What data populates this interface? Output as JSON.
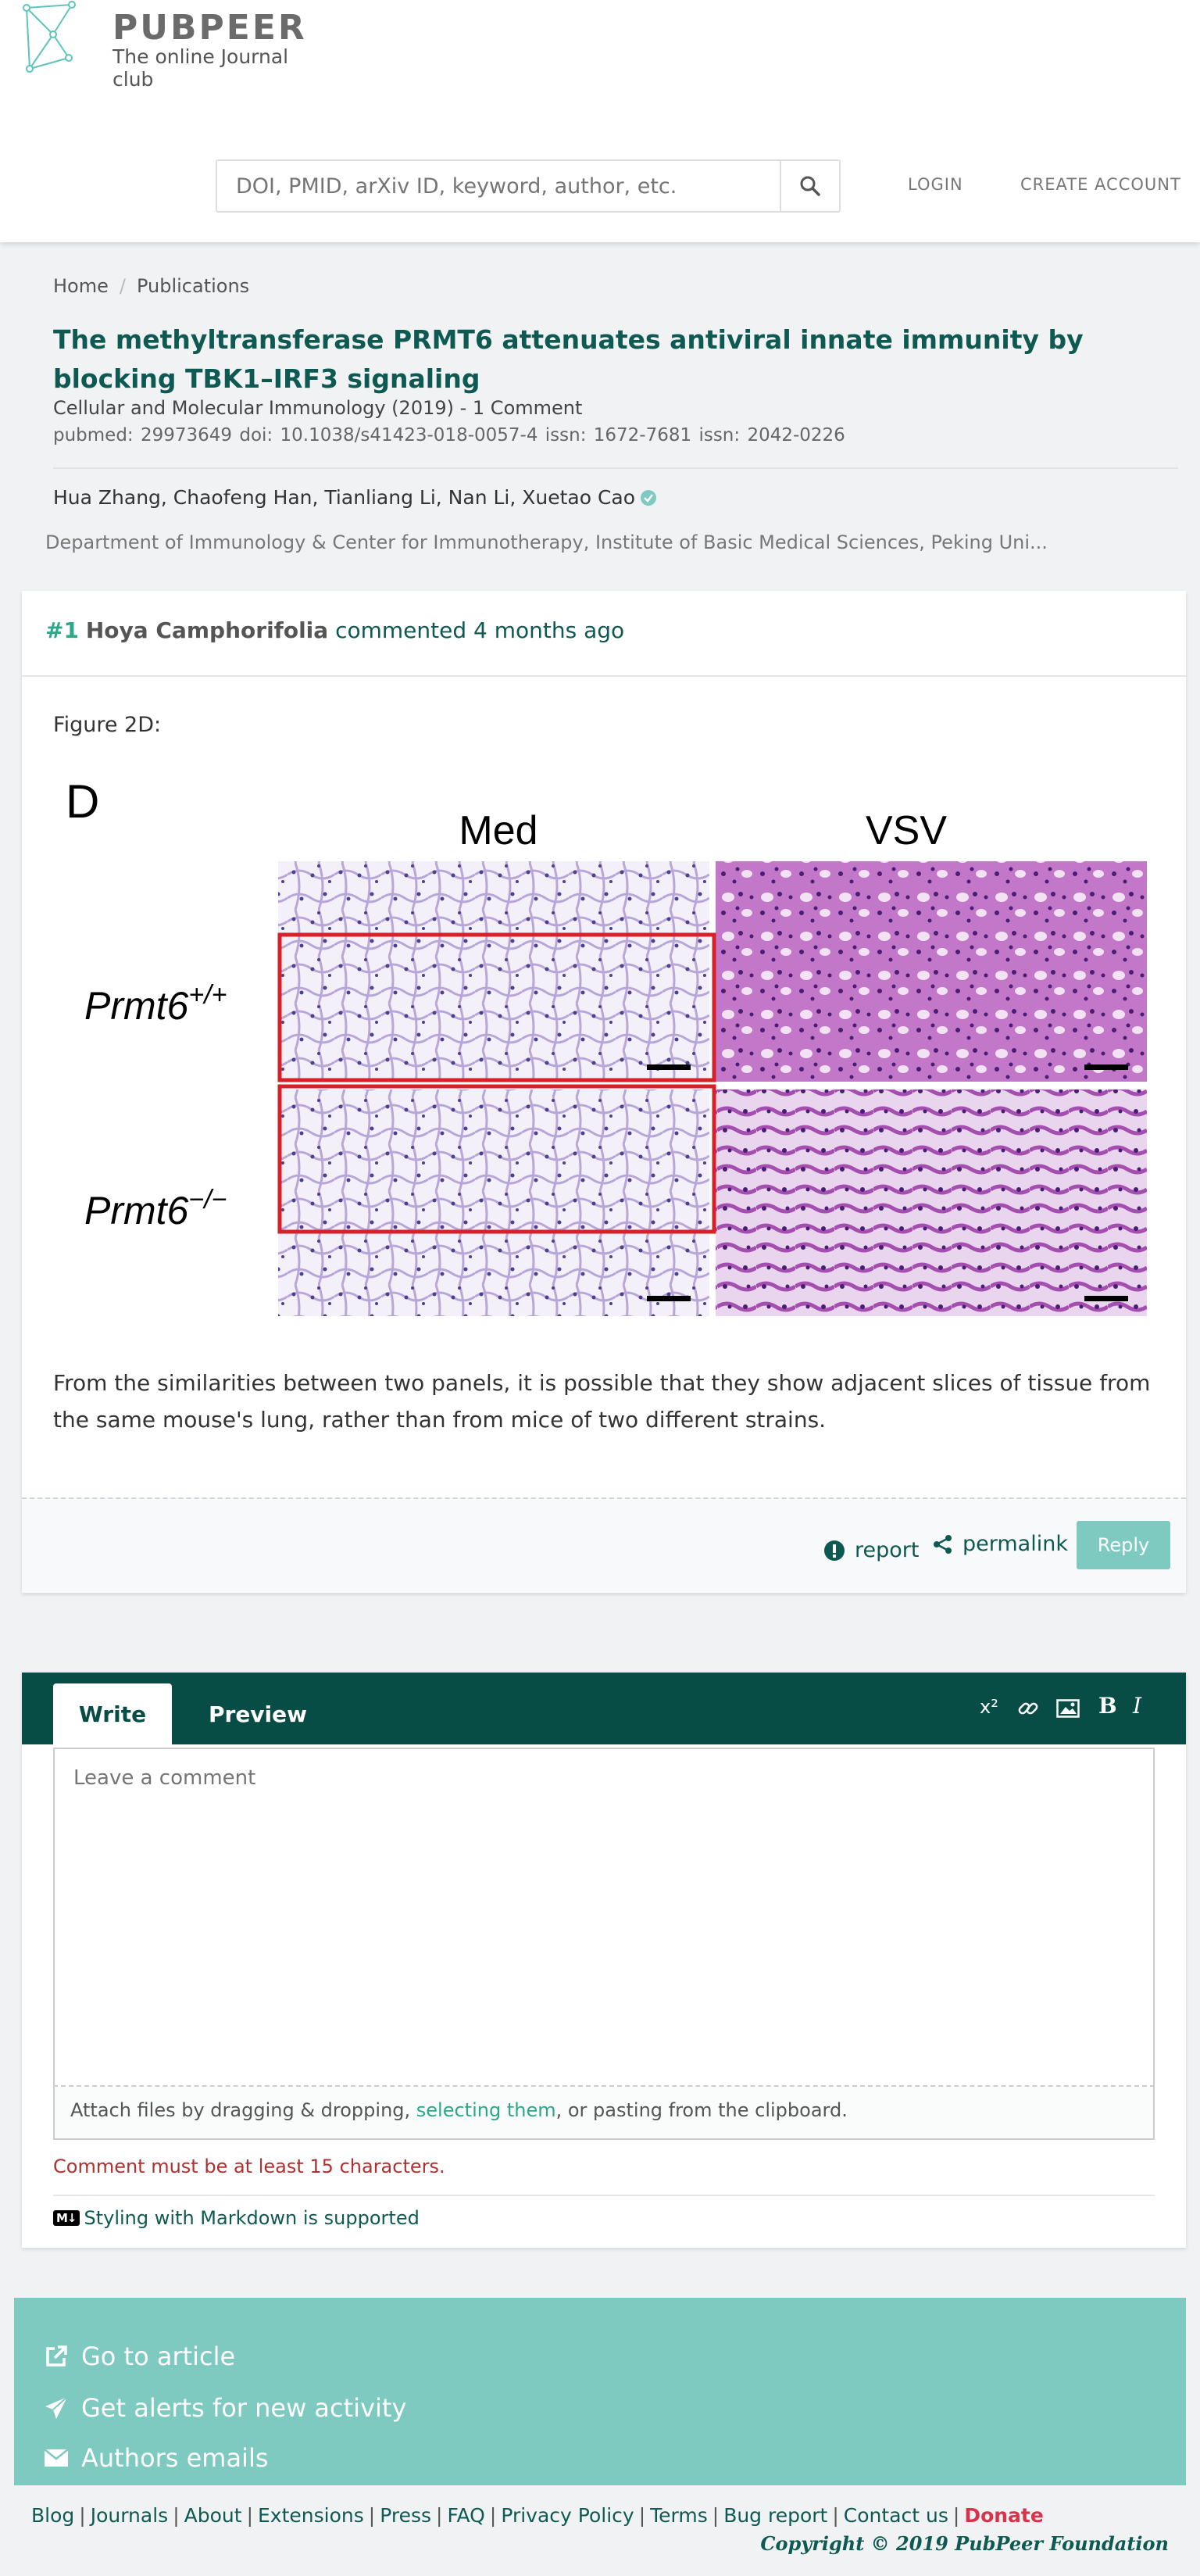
{
  "brand": {
    "name": "PUBPEER",
    "tagline": "The online Journal club"
  },
  "header": {
    "search_placeholder": "DOI, PMID, arXiv ID, keyword, author, etc.",
    "login": "LOGIN",
    "create_account": "CREATE ACCOUNT"
  },
  "breadcrumb": {
    "home": "Home",
    "separator": "/",
    "publications": "Publications"
  },
  "article": {
    "title": "The methyltransferase PRMT6 attenuates antiviral innate immunity by blocking TBK1–IRF3 signaling",
    "journal_line": "Cellular and Molecular Immunology (2019) - 1 Comment",
    "ids": "pubmed: 29973649  doi: 10.1038/s41423-018-0057-4  issn: 1672-7681  issn: 2042-0226",
    "authors": "Hua Zhang, Chaofeng Han, Tianliang Li, Nan Li, Xuetao Cao",
    "affiliation": "Department of Immunology & Center for Immunotherapy, Institute of Basic Medical Sciences, Peking Uni..."
  },
  "comment": {
    "number": "#1",
    "user": "Hoya Camphorifolia",
    "when": "commented 4 months ago",
    "figure_label": "Figure 2D:",
    "figure": {
      "panel_letter": "D",
      "col_med": "Med",
      "col_vsv": "VSV",
      "row_wt": "Prmt6",
      "row_wt_sup": "+/+",
      "row_ko": "Prmt6",
      "row_ko_sup": "−/−"
    },
    "body": "From the similarities between two panels, it is possible that they show adjacent slices of tissue from the same mouse's lung, rather than from mice of two different strains.",
    "report": "report",
    "permalink": "permalink",
    "reply": "Reply"
  },
  "editor": {
    "tab_write": "Write",
    "tab_preview": "Preview",
    "tool_superscript": "x²",
    "tool_bold": "B",
    "tool_italic": "I",
    "placeholder": "Leave a comment",
    "attach_before": "Attach files by dragging & dropping, ",
    "attach_link": "selecting them",
    "attach_after": ", or pasting from the clipboard.",
    "error": "Comment must be at least 15 characters.",
    "markdown_badge": "M↓",
    "markdown": "Styling with Markdown is supported"
  },
  "actions": {
    "go_to_article": "Go to article",
    "alerts": "Get alerts for new activity",
    "authors_emails": "Authors emails"
  },
  "footer": {
    "links": [
      "Blog",
      "Journals",
      "About",
      "Extensions",
      "Press",
      "FAQ",
      "Privacy Policy",
      "Terms",
      "Bug report",
      "Contact us"
    ],
    "donate": "Donate",
    "copyright": "Copyright © 2019 PubPeer Foundation"
  },
  "colors": {
    "primary": "#0e5a52",
    "accent": "#2aa889",
    "teal_panel": "#7ec9c0",
    "editor_bar": "#084d45",
    "donate": "#d8334a"
  }
}
